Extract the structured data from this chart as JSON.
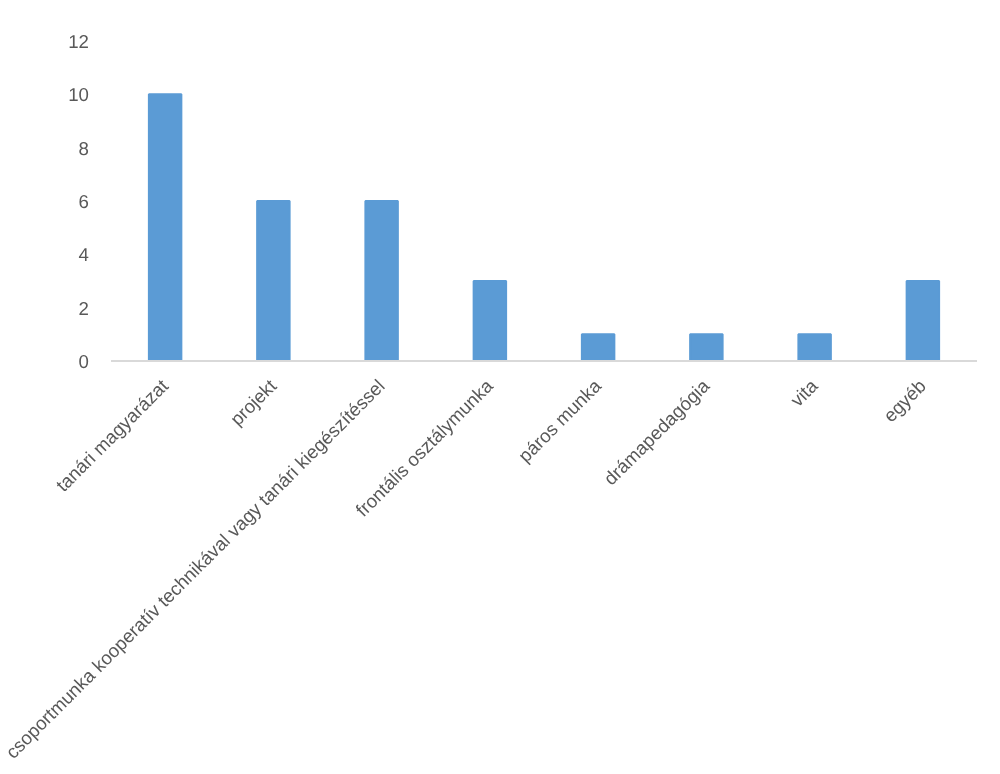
{
  "chart_data": {
    "type": "bar",
    "categories": [
      "tanári magyarázat",
      "projekt",
      "csoportmunka kooperatív technikával vagy tanári kiegészítéssel",
      "frontális osztálymunka",
      "páros munka",
      "drámapedagógia",
      "vita",
      "egyéb"
    ],
    "values": [
      10,
      6,
      6,
      3,
      1,
      1,
      1,
      3
    ],
    "color": "#5b9bd5",
    "ylim": [
      0,
      12
    ],
    "yticks": [
      0,
      2,
      4,
      6,
      8,
      10,
      12
    ],
    "grid": false
  }
}
